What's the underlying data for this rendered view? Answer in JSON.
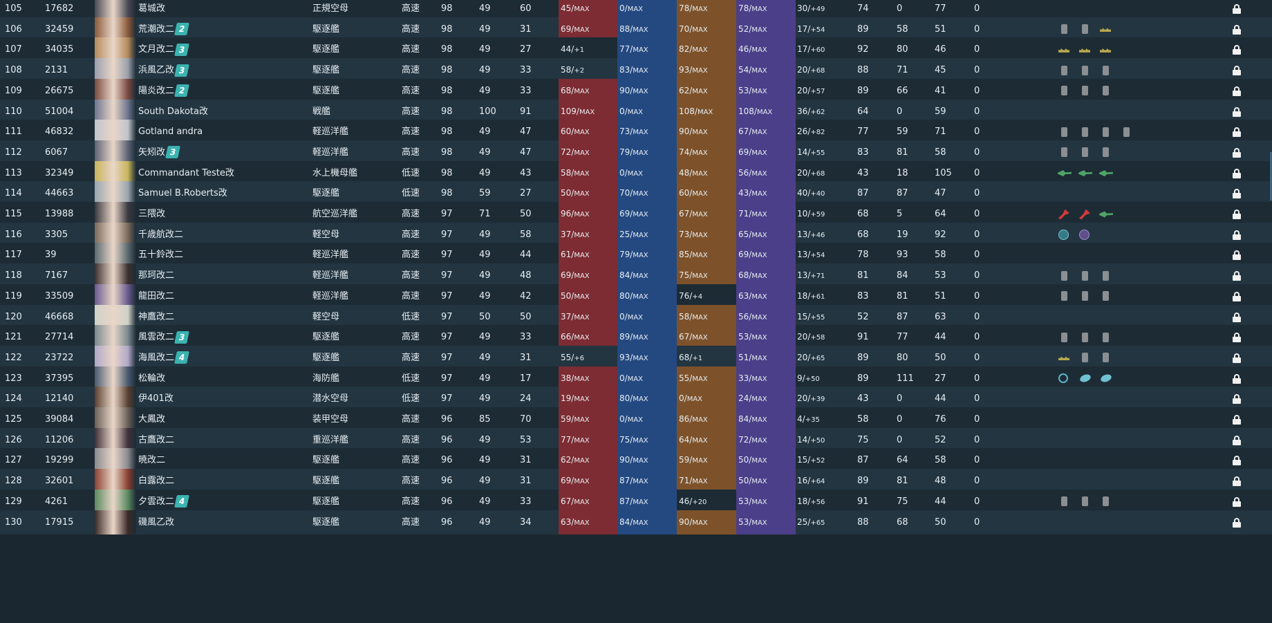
{
  "colors": {
    "firepower_max": "#7c2c32",
    "torpedo_max": "#244981",
    "antiair_max": "#7d522a",
    "armor_max": "#4b3f89",
    "not_max": "#1d2b35",
    "rank_badge": "#3bb3b0"
  },
  "max_suffix": "MAX",
  "rows": [
    {
      "num": "105",
      "id": "17682",
      "name": "葛城改",
      "rank": "",
      "type": "正規空母",
      "speed": "高速",
      "lv": "98",
      "luck": "49",
      "ev": "60",
      "fp": {
        "v": "45/",
        "s": "MAX",
        "max": true
      },
      "tp": {
        "v": "0/",
        "s": "MAX",
        "max": true
      },
      "aa": {
        "v": "78/",
        "s": "MAX",
        "max": true
      },
      "ar": {
        "v": "78/",
        "s": "MAX",
        "max": true
      },
      "hp": {
        "v": "30/",
        "s": "+49"
      },
      "asw": "74",
      "los": "0",
      "ev2": "77",
      "zero": "0",
      "equips": []
    },
    {
      "num": "106",
      "id": "32459",
      "name": "荒潮改二",
      "rank": "2",
      "type": "駆逐艦",
      "speed": "高速",
      "lv": "98",
      "luck": "49",
      "ev": "31",
      "fp": {
        "v": "69/",
        "s": "MAX",
        "max": true
      },
      "tp": {
        "v": "88/",
        "s": "MAX",
        "max": true
      },
      "aa": {
        "v": "70/",
        "s": "MAX",
        "max": true
      },
      "ar": {
        "v": "52/",
        "s": "MAX",
        "max": true
      },
      "hp": {
        "v": "17/",
        "s": "+54"
      },
      "asw": "89",
      "los": "58",
      "ev2": "51",
      "zero": "0",
      "equips": [
        "can",
        "can",
        "radar"
      ]
    },
    {
      "num": "107",
      "id": "34035",
      "name": "文月改二",
      "rank": "3",
      "type": "駆逐艦",
      "speed": "高速",
      "lv": "98",
      "luck": "49",
      "ev": "27",
      "fp": {
        "v": "44/",
        "s": "+1",
        "max": false
      },
      "tp": {
        "v": "77/",
        "s": "MAX",
        "max": true
      },
      "aa": {
        "v": "82/",
        "s": "MAX",
        "max": true
      },
      "ar": {
        "v": "46/",
        "s": "MAX",
        "max": true
      },
      "hp": {
        "v": "17/",
        "s": "+60"
      },
      "asw": "92",
      "los": "80",
      "ev2": "46",
      "zero": "0",
      "equips": [
        "radar",
        "radar",
        "radar"
      ]
    },
    {
      "num": "108",
      "id": "2131",
      "name": "浜風乙改",
      "rank": "3",
      "type": "駆逐艦",
      "speed": "高速",
      "lv": "98",
      "luck": "49",
      "ev": "33",
      "fp": {
        "v": "58/",
        "s": "+2",
        "max": false
      },
      "tp": {
        "v": "83/",
        "s": "MAX",
        "max": true
      },
      "aa": {
        "v": "93/",
        "s": "MAX",
        "max": true
      },
      "ar": {
        "v": "54/",
        "s": "MAX",
        "max": true
      },
      "hp": {
        "v": "20/",
        "s": "+68"
      },
      "asw": "88",
      "los": "71",
      "ev2": "45",
      "zero": "0",
      "equips": [
        "can",
        "can",
        "can"
      ]
    },
    {
      "num": "109",
      "id": "26675",
      "name": "陽炎改二",
      "rank": "2",
      "type": "駆逐艦",
      "speed": "高速",
      "lv": "98",
      "luck": "49",
      "ev": "33",
      "fp": {
        "v": "68/",
        "s": "MAX",
        "max": true
      },
      "tp": {
        "v": "90/",
        "s": "MAX",
        "max": true
      },
      "aa": {
        "v": "62/",
        "s": "MAX",
        "max": true
      },
      "ar": {
        "v": "53/",
        "s": "MAX",
        "max": true
      },
      "hp": {
        "v": "20/",
        "s": "+57"
      },
      "asw": "89",
      "los": "66",
      "ev2": "41",
      "zero": "0",
      "equips": [
        "can",
        "can",
        "can"
      ]
    },
    {
      "num": "110",
      "id": "51004",
      "name": "South Dakota改",
      "rank": "",
      "type": "戦艦",
      "speed": "高速",
      "lv": "98",
      "luck": "100",
      "ev": "91",
      "fp": {
        "v": "109/",
        "s": "MAX",
        "max": true
      },
      "tp": {
        "v": "0/",
        "s": "MAX",
        "max": true
      },
      "aa": {
        "v": "108/",
        "s": "MAX",
        "max": true
      },
      "ar": {
        "v": "108/",
        "s": "MAX",
        "max": true
      },
      "hp": {
        "v": "36/",
        "s": "+62"
      },
      "asw": "64",
      "los": "0",
      "ev2": "59",
      "zero": "0",
      "equips": []
    },
    {
      "num": "111",
      "id": "46832",
      "name": "Gotland andra",
      "rank": "",
      "type": "軽巡洋艦",
      "speed": "高速",
      "lv": "98",
      "luck": "49",
      "ev": "47",
      "fp": {
        "v": "60/",
        "s": "MAX",
        "max": true
      },
      "tp": {
        "v": "73/",
        "s": "MAX",
        "max": true
      },
      "aa": {
        "v": "90/",
        "s": "MAX",
        "max": true
      },
      "ar": {
        "v": "67/",
        "s": "MAX",
        "max": true
      },
      "hp": {
        "v": "26/",
        "s": "+82"
      },
      "asw": "77",
      "los": "59",
      "ev2": "71",
      "zero": "0",
      "equips": [
        "can",
        "can",
        "can",
        "can"
      ]
    },
    {
      "num": "112",
      "id": "6067",
      "name": "矢矧改",
      "rank": "3",
      "type": "軽巡洋艦",
      "speed": "高速",
      "lv": "98",
      "luck": "49",
      "ev": "47",
      "fp": {
        "v": "72/",
        "s": "MAX",
        "max": true
      },
      "tp": {
        "v": "79/",
        "s": "MAX",
        "max": true
      },
      "aa": {
        "v": "74/",
        "s": "MAX",
        "max": true
      },
      "ar": {
        "v": "69/",
        "s": "MAX",
        "max": true
      },
      "hp": {
        "v": "14/",
        "s": "+55"
      },
      "asw": "83",
      "los": "81",
      "ev2": "58",
      "zero": "0",
      "equips": [
        "can",
        "can",
        "can"
      ]
    },
    {
      "num": "113",
      "id": "32349",
      "name": "Commandant Teste改",
      "rank": "",
      "type": "水上機母艦",
      "speed": "低速",
      "lv": "98",
      "luck": "49",
      "ev": "43",
      "fp": {
        "v": "58/",
        "s": "MAX",
        "max": true
      },
      "tp": {
        "v": "0/",
        "s": "MAX",
        "max": true
      },
      "aa": {
        "v": "48/",
        "s": "MAX",
        "max": true
      },
      "ar": {
        "v": "56/",
        "s": "MAX",
        "max": true
      },
      "hp": {
        "v": "20/",
        "s": "+68"
      },
      "asw": "43",
      "los": "18",
      "ev2": "105",
      "zero": "0",
      "equips": [
        "plane-g",
        "plane-g",
        "plane-g"
      ]
    },
    {
      "num": "114",
      "id": "44663",
      "name": "Samuel B.Roberts改",
      "rank": "",
      "type": "駆逐艦",
      "speed": "低速",
      "lv": "98",
      "luck": "59",
      "ev": "27",
      "fp": {
        "v": "50/",
        "s": "MAX",
        "max": true
      },
      "tp": {
        "v": "70/",
        "s": "MAX",
        "max": true
      },
      "aa": {
        "v": "60/",
        "s": "MAX",
        "max": true
      },
      "ar": {
        "v": "43/",
        "s": "MAX",
        "max": true
      },
      "hp": {
        "v": "40/",
        "s": "+40"
      },
      "asw": "87",
      "los": "87",
      "ev2": "47",
      "zero": "0",
      "equips": []
    },
    {
      "num": "115",
      "id": "13988",
      "name": "三隈改",
      "rank": "",
      "type": "航空巡洋艦",
      "speed": "高速",
      "lv": "97",
      "luck": "71",
      "ev": "50",
      "fp": {
        "v": "96/",
        "s": "MAX",
        "max": true
      },
      "tp": {
        "v": "69/",
        "s": "MAX",
        "max": true
      },
      "aa": {
        "v": "67/",
        "s": "MAX",
        "max": true
      },
      "ar": {
        "v": "71/",
        "s": "MAX",
        "max": true
      },
      "hp": {
        "v": "10/",
        "s": "+59"
      },
      "asw": "68",
      "los": "5",
      "ev2": "64",
      "zero": "0",
      "equips": [
        "plane-r",
        "plane-r",
        "plane-g"
      ]
    },
    {
      "num": "116",
      "id": "3305",
      "name": "千歳航改二",
      "rank": "",
      "type": "軽空母",
      "speed": "高速",
      "lv": "97",
      "luck": "49",
      "ev": "58",
      "fp": {
        "v": "37/",
        "s": "MAX",
        "max": true
      },
      "tp": {
        "v": "25/",
        "s": "MAX",
        "max": true
      },
      "aa": {
        "v": "73/",
        "s": "MAX",
        "max": true
      },
      "ar": {
        "v": "65/",
        "s": "MAX",
        "max": true
      },
      "hp": {
        "v": "13/",
        "s": "+46"
      },
      "asw": "68",
      "los": "19",
      "ev2": "92",
      "zero": "0",
      "equips": [
        "chip-g",
        "chip-p"
      ]
    },
    {
      "num": "117",
      "id": "39",
      "name": "五十鈴改二",
      "rank": "",
      "type": "軽巡洋艦",
      "speed": "高速",
      "lv": "97",
      "luck": "49",
      "ev": "44",
      "fp": {
        "v": "61/",
        "s": "MAX",
        "max": true
      },
      "tp": {
        "v": "79/",
        "s": "MAX",
        "max": true
      },
      "aa": {
        "v": "85/",
        "s": "MAX",
        "max": true
      },
      "ar": {
        "v": "69/",
        "s": "MAX",
        "max": true
      },
      "hp": {
        "v": "13/",
        "s": "+54"
      },
      "asw": "78",
      "los": "93",
      "ev2": "58",
      "zero": "0",
      "equips": []
    },
    {
      "num": "118",
      "id": "7167",
      "name": "那珂改二",
      "rank": "",
      "type": "軽巡洋艦",
      "speed": "高速",
      "lv": "97",
      "luck": "49",
      "ev": "48",
      "fp": {
        "v": "69/",
        "s": "MAX",
        "max": true
      },
      "tp": {
        "v": "84/",
        "s": "MAX",
        "max": true
      },
      "aa": {
        "v": "75/",
        "s": "MAX",
        "max": true
      },
      "ar": {
        "v": "68/",
        "s": "MAX",
        "max": true
      },
      "hp": {
        "v": "13/",
        "s": "+71"
      },
      "asw": "81",
      "los": "84",
      "ev2": "53",
      "zero": "0",
      "equips": [
        "can",
        "can",
        "can"
      ]
    },
    {
      "num": "119",
      "id": "33509",
      "name": "龍田改二",
      "rank": "",
      "type": "軽巡洋艦",
      "speed": "高速",
      "lv": "97",
      "luck": "49",
      "ev": "42",
      "fp": {
        "v": "50/",
        "s": "MAX",
        "max": true
      },
      "tp": {
        "v": "80/",
        "s": "MAX",
        "max": true
      },
      "aa": {
        "v": "76/",
        "s": "+4",
        "max": false
      },
      "ar": {
        "v": "63/",
        "s": "MAX",
        "max": true
      },
      "hp": {
        "v": "18/",
        "s": "+61"
      },
      "asw": "83",
      "los": "81",
      "ev2": "51",
      "zero": "0",
      "equips": [
        "can",
        "can",
        "can"
      ]
    },
    {
      "num": "120",
      "id": "46668",
      "name": "神鷹改二",
      "rank": "",
      "type": "軽空母",
      "speed": "低速",
      "lv": "97",
      "luck": "50",
      "ev": "50",
      "fp": {
        "v": "37/",
        "s": "MAX",
        "max": true
      },
      "tp": {
        "v": "0/",
        "s": "MAX",
        "max": true
      },
      "aa": {
        "v": "58/",
        "s": "MAX",
        "max": true
      },
      "ar": {
        "v": "56/",
        "s": "MAX",
        "max": true
      },
      "hp": {
        "v": "15/",
        "s": "+55"
      },
      "asw": "52",
      "los": "87",
      "ev2": "63",
      "zero": "0",
      "equips": []
    },
    {
      "num": "121",
      "id": "27714",
      "name": "風雲改二",
      "rank": "3",
      "type": "駆逐艦",
      "speed": "高速",
      "lv": "97",
      "luck": "49",
      "ev": "33",
      "fp": {
        "v": "66/",
        "s": "MAX",
        "max": true
      },
      "tp": {
        "v": "89/",
        "s": "MAX",
        "max": true
      },
      "aa": {
        "v": "67/",
        "s": "MAX",
        "max": true
      },
      "ar": {
        "v": "53/",
        "s": "MAX",
        "max": true
      },
      "hp": {
        "v": "20/",
        "s": "+58"
      },
      "asw": "91",
      "los": "77",
      "ev2": "44",
      "zero": "0",
      "equips": [
        "can",
        "can",
        "can"
      ]
    },
    {
      "num": "122",
      "id": "23722",
      "name": "海風改二",
      "rank": "4",
      "type": "駆逐艦",
      "speed": "高速",
      "lv": "97",
      "luck": "49",
      "ev": "31",
      "fp": {
        "v": "55/",
        "s": "+6",
        "max": false
      },
      "tp": {
        "v": "93/",
        "s": "MAX",
        "max": true
      },
      "aa": {
        "v": "68/",
        "s": "+1",
        "max": false
      },
      "ar": {
        "v": "51/",
        "s": "MAX",
        "max": true
      },
      "hp": {
        "v": "20/",
        "s": "+65"
      },
      "asw": "89",
      "los": "80",
      "ev2": "50",
      "zero": "0",
      "equips": [
        "radar",
        "can",
        "can"
      ]
    },
    {
      "num": "123",
      "id": "37395",
      "name": "松輪改",
      "rank": "",
      "type": "海防艦",
      "speed": "低速",
      "lv": "97",
      "luck": "49",
      "ev": "17",
      "fp": {
        "v": "38/",
        "s": "MAX",
        "max": true
      },
      "tp": {
        "v": "0/",
        "s": "MAX",
        "max": true
      },
      "aa": {
        "v": "55/",
        "s": "MAX",
        "max": true
      },
      "ar": {
        "v": "33/",
        "s": "MAX",
        "max": true
      },
      "hp": {
        "v": "9/",
        "s": "+50"
      },
      "asw": "89",
      "los": "111",
      "ev2": "27",
      "zero": "0",
      "equips": [
        "sonar",
        "dc",
        "dc"
      ]
    },
    {
      "num": "124",
      "id": "12140",
      "name": "伊401改",
      "rank": "",
      "type": "潜水空母",
      "speed": "低速",
      "lv": "97",
      "luck": "49",
      "ev": "24",
      "fp": {
        "v": "19/",
        "s": "MAX",
        "max": true
      },
      "tp": {
        "v": "80/",
        "s": "MAX",
        "max": true
      },
      "aa": {
        "v": "0/",
        "s": "MAX",
        "max": true
      },
      "ar": {
        "v": "24/",
        "s": "MAX",
        "max": true
      },
      "hp": {
        "v": "20/",
        "s": "+39"
      },
      "asw": "43",
      "los": "0",
      "ev2": "44",
      "zero": "0",
      "equips": []
    },
    {
      "num": "125",
      "id": "39084",
      "name": "大鳳改",
      "rank": "",
      "type": "装甲空母",
      "speed": "高速",
      "lv": "96",
      "luck": "85",
      "ev": "70",
      "fp": {
        "v": "59/",
        "s": "MAX",
        "max": true
      },
      "tp": {
        "v": "0/",
        "s": "MAX",
        "max": true
      },
      "aa": {
        "v": "86/",
        "s": "MAX",
        "max": true
      },
      "ar": {
        "v": "84/",
        "s": "MAX",
        "max": true
      },
      "hp": {
        "v": "4/",
        "s": "+35"
      },
      "asw": "58",
      "los": "0",
      "ev2": "76",
      "zero": "0",
      "equips": []
    },
    {
      "num": "126",
      "id": "11206",
      "name": "古鷹改二",
      "rank": "",
      "type": "重巡洋艦",
      "speed": "高速",
      "lv": "96",
      "luck": "49",
      "ev": "53",
      "fp": {
        "v": "77/",
        "s": "MAX",
        "max": true
      },
      "tp": {
        "v": "75/",
        "s": "MAX",
        "max": true
      },
      "aa": {
        "v": "64/",
        "s": "MAX",
        "max": true
      },
      "ar": {
        "v": "72/",
        "s": "MAX",
        "max": true
      },
      "hp": {
        "v": "14/",
        "s": "+50"
      },
      "asw": "75",
      "los": "0",
      "ev2": "52",
      "zero": "0",
      "equips": []
    },
    {
      "num": "127",
      "id": "19299",
      "name": "暁改二",
      "rank": "",
      "type": "駆逐艦",
      "speed": "高速",
      "lv": "96",
      "luck": "49",
      "ev": "31",
      "fp": {
        "v": "62/",
        "s": "MAX",
        "max": true
      },
      "tp": {
        "v": "90/",
        "s": "MAX",
        "max": true
      },
      "aa": {
        "v": "59/",
        "s": "MAX",
        "max": true
      },
      "ar": {
        "v": "50/",
        "s": "MAX",
        "max": true
      },
      "hp": {
        "v": "15/",
        "s": "+52"
      },
      "asw": "87",
      "los": "64",
      "ev2": "58",
      "zero": "0",
      "equips": []
    },
    {
      "num": "128",
      "id": "32601",
      "name": "白露改二",
      "rank": "",
      "type": "駆逐艦",
      "speed": "高速",
      "lv": "96",
      "luck": "49",
      "ev": "31",
      "fp": {
        "v": "69/",
        "s": "MAX",
        "max": true
      },
      "tp": {
        "v": "87/",
        "s": "MAX",
        "max": true
      },
      "aa": {
        "v": "71/",
        "s": "MAX",
        "max": true
      },
      "ar": {
        "v": "50/",
        "s": "MAX",
        "max": true
      },
      "hp": {
        "v": "16/",
        "s": "+64"
      },
      "asw": "89",
      "los": "81",
      "ev2": "48",
      "zero": "0",
      "equips": []
    },
    {
      "num": "129",
      "id": "4261",
      "name": "夕雲改二",
      "rank": "4",
      "type": "駆逐艦",
      "speed": "高速",
      "lv": "96",
      "luck": "49",
      "ev": "33",
      "fp": {
        "v": "67/",
        "s": "MAX",
        "max": true
      },
      "tp": {
        "v": "87/",
        "s": "MAX",
        "max": true
      },
      "aa": {
        "v": "46/",
        "s": "+20",
        "max": false
      },
      "ar": {
        "v": "53/",
        "s": "MAX",
        "max": true
      },
      "hp": {
        "v": "18/",
        "s": "+56"
      },
      "asw": "91",
      "los": "75",
      "ev2": "44",
      "zero": "0",
      "equips": [
        "can",
        "can",
        "can"
      ]
    },
    {
      "num": "130",
      "id": "17915",
      "name": "磯風乙改",
      "rank": "",
      "type": "駆逐艦",
      "speed": "高速",
      "lv": "96",
      "luck": "49",
      "ev": "34",
      "fp": {
        "v": "63/",
        "s": "MAX",
        "max": true
      },
      "tp": {
        "v": "84/",
        "s": "MAX",
        "max": true
      },
      "aa": {
        "v": "90/",
        "s": "MAX",
        "max": true
      },
      "ar": {
        "v": "53/",
        "s": "MAX",
        "max": true
      },
      "hp": {
        "v": "25/",
        "s": "+65"
      },
      "asw": "88",
      "los": "68",
      "ev2": "50",
      "zero": "0",
      "equips": []
    }
  ]
}
